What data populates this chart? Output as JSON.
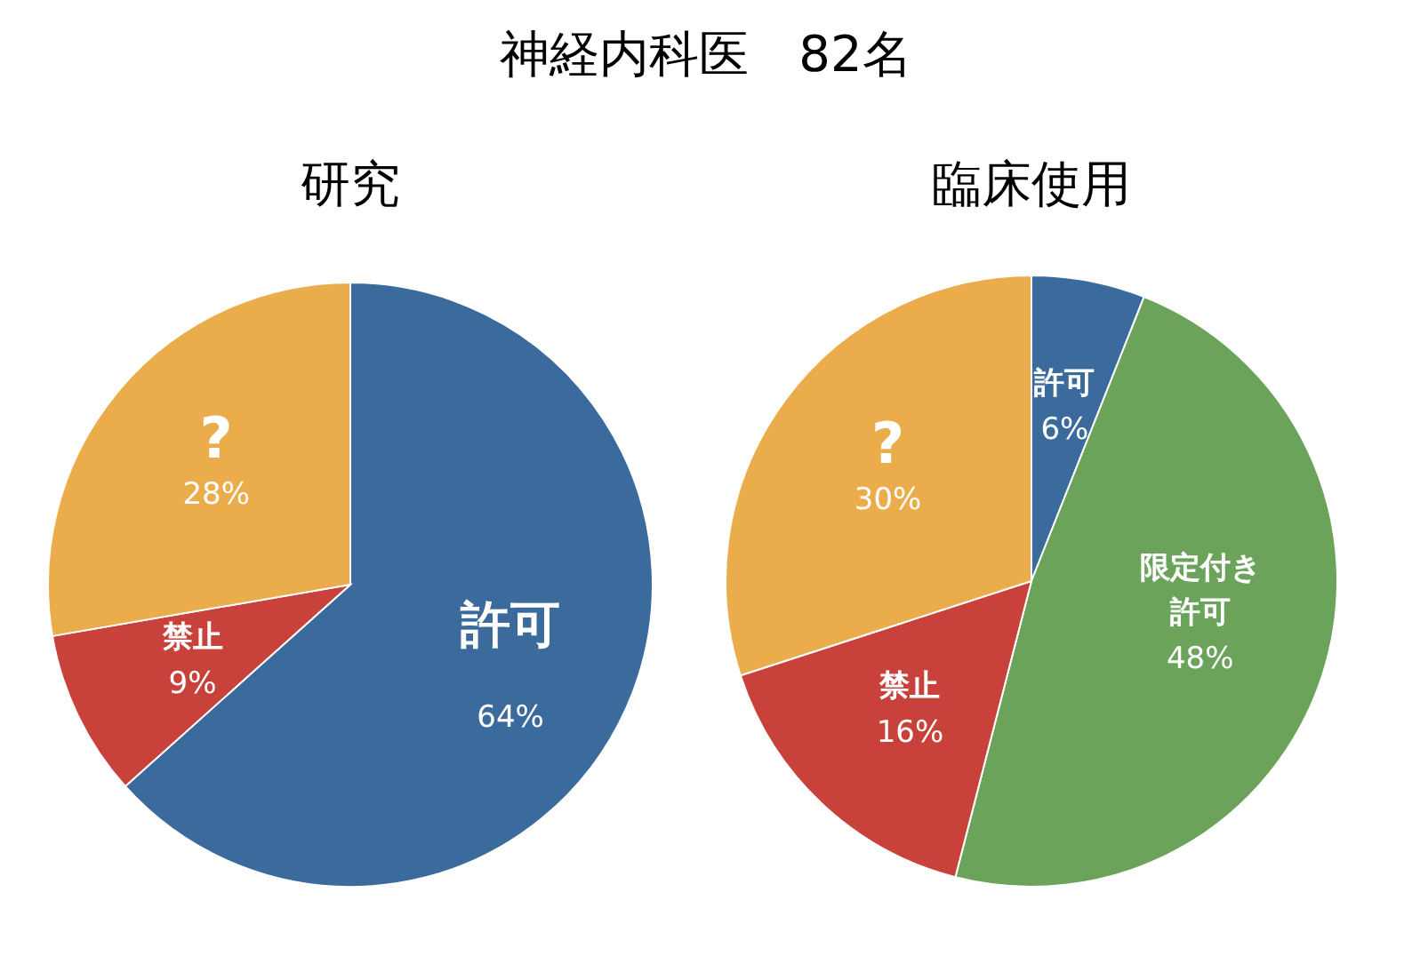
{
  "chart_data": [
    {
      "type": "pie",
      "title": "神経内科医　82名",
      "subtitle": "研究",
      "categories": [
        "許可",
        "禁止",
        "?"
      ],
      "values": [
        64,
        9,
        28
      ],
      "colors": [
        "#3b6a9c",
        "#c8413b",
        "#ebad4b"
      ],
      "value_labels": [
        "64%",
        "9%",
        "28%"
      ]
    },
    {
      "type": "pie",
      "subtitle": "臨床使用",
      "categories": [
        "許可",
        "限定付き許可",
        "禁止",
        "?"
      ],
      "values": [
        6,
        48,
        16,
        30
      ],
      "colors": [
        "#3b6a9c",
        "#6ba35a",
        "#c8413b",
        "#ebad4b"
      ],
      "value_labels": [
        "6%",
        "48%",
        "16%",
        "30%"
      ]
    }
  ]
}
